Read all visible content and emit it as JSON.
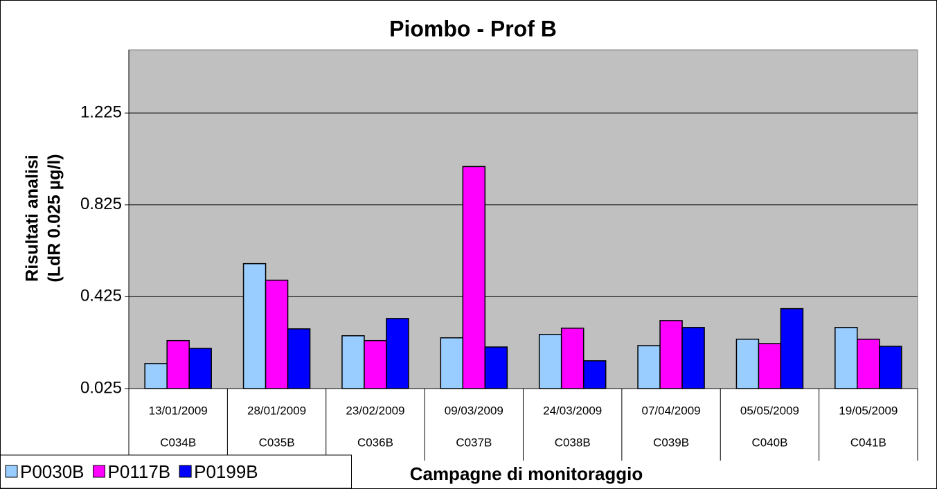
{
  "chart_data": {
    "type": "bar",
    "title": "Piombo - Prof B",
    "x_label": "Campagne di monitoraggio",
    "y_label": [
      "Risultati analisi",
      "(LdR 0.025 µg/l)"
    ],
    "categories": [
      "13/01/2009",
      "28/01/2009",
      "23/02/2009",
      "09/03/2009",
      "24/03/2009",
      "07/04/2009",
      "05/05/2009",
      "19/05/2009"
    ],
    "category_codes": [
      "C034B",
      "C035B",
      "C036B",
      "C037B",
      "C038B",
      "C039B",
      "C040B",
      "C041B"
    ],
    "series": [
      {
        "name": "P0030B",
        "color": "#99ccff",
        "values": [
          0.134,
          0.569,
          0.255,
          0.246,
          0.261,
          0.212,
          0.24,
          0.291
        ]
      },
      {
        "name": "P0117B",
        "color": "#ff00ff",
        "values": [
          0.234,
          0.497,
          0.234,
          0.992,
          0.288,
          0.321,
          0.221,
          0.24
        ]
      },
      {
        "name": "P0199B",
        "color": "#0000ff",
        "values": [
          0.2,
          0.285,
          0.33,
          0.206,
          0.146,
          0.291,
          0.373,
          0.209
        ]
      }
    ],
    "ylim": [
      0.025,
      1.5
    ],
    "yticks": [
      0.025,
      0.425,
      0.825,
      1.225
    ],
    "grid": true,
    "legend": "bottom-left",
    "plot_background": "#c0c0c0"
  }
}
